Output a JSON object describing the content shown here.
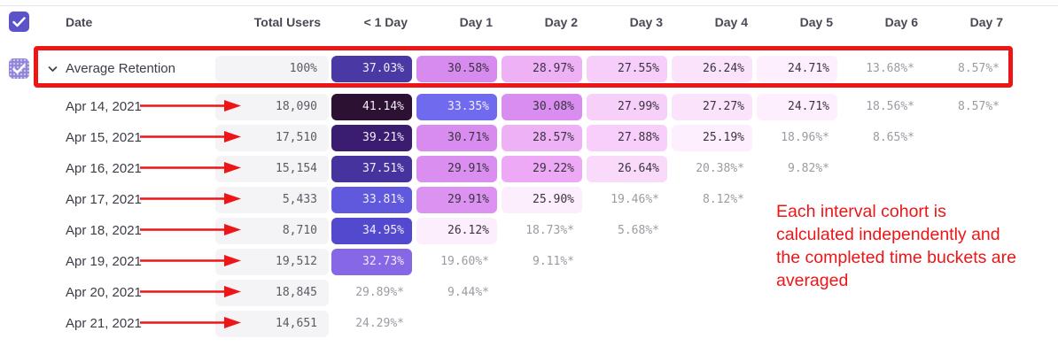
{
  "table": {
    "select_all_checked": true,
    "columns": [
      "Date",
      "Total Users",
      "< 1 Day",
      "Day 1",
      "Day 2",
      "Day 3",
      "Day 4",
      "Day 5",
      "Day 6",
      "Day 7"
    ],
    "rows": [
      {
        "label": "Average Retention",
        "expandable": true,
        "checked": true,
        "total": "100%",
        "cells": [
          {
            "value": "37.03%",
            "bg": "#4a38a4",
            "fg": "#f2edf9"
          },
          {
            "value": "30.58%",
            "bg": "#d88bef",
            "fg": "#3a3440"
          },
          {
            "value": "28.97%",
            "bg": "#eeb1f6",
            "fg": "#3a3440"
          },
          {
            "value": "27.55%",
            "bg": "#f7cdf9",
            "fg": "#3a3440"
          },
          {
            "value": "26.24%",
            "bg": "#fbe3fc",
            "fg": "#3a3440"
          },
          {
            "value": "24.71%",
            "bg": "#fdeffd",
            "fg": "#3a3440"
          },
          {
            "value": "13.68%*",
            "bg": "",
            "fg": "#9c9aa2"
          },
          {
            "value": "8.57%*",
            "bg": "",
            "fg": "#9c9aa2"
          }
        ]
      },
      {
        "label": "Apr 14, 2021",
        "expandable": false,
        "checked": false,
        "total": "18,090",
        "cells": [
          {
            "value": "41.14%",
            "bg": "#2c1132",
            "fg": "#f2edf9"
          },
          {
            "value": "33.35%",
            "bg": "#6f6aee",
            "fg": "#f2edf9"
          },
          {
            "value": "30.08%",
            "bg": "#d98df0",
            "fg": "#3a3440"
          },
          {
            "value": "27.99%",
            "bg": "#f7d0fa",
            "fg": "#3a3440"
          },
          {
            "value": "27.27%",
            "bg": "#fbe3fc",
            "fg": "#3a3440"
          },
          {
            "value": "24.71%",
            "bg": "#fdeffd",
            "fg": "#3a3440"
          },
          {
            "value": "18.56%*",
            "bg": "",
            "fg": "#9c9aa2"
          },
          {
            "value": "8.57%*",
            "bg": "",
            "fg": "#9c9aa2"
          }
        ]
      },
      {
        "label": "Apr 15, 2021",
        "expandable": false,
        "checked": false,
        "total": "17,510",
        "cells": [
          {
            "value": "39.21%",
            "bg": "#3a1d71",
            "fg": "#f2edf9"
          },
          {
            "value": "30.71%",
            "bg": "#d98cf0",
            "fg": "#3a3440"
          },
          {
            "value": "28.57%",
            "bg": "#eeb1f6",
            "fg": "#3a3440"
          },
          {
            "value": "27.88%",
            "bg": "#f7cffa",
            "fg": "#3a3440"
          },
          {
            "value": "25.19%",
            "bg": "#fdeffd",
            "fg": "#3a3440"
          },
          {
            "value": "18.96%*",
            "bg": "",
            "fg": "#9c9aa2"
          },
          {
            "value": "8.65%*",
            "bg": "",
            "fg": "#9c9aa2"
          }
        ]
      },
      {
        "label": "Apr 16, 2021",
        "expandable": false,
        "checked": false,
        "total": "15,154",
        "cells": [
          {
            "value": "37.51%",
            "bg": "#47339e",
            "fg": "#f2edf9"
          },
          {
            "value": "29.91%",
            "bg": "#da8ef0",
            "fg": "#3a3440"
          },
          {
            "value": "29.22%",
            "bg": "#eda9f5",
            "fg": "#3a3440"
          },
          {
            "value": "26.64%",
            "bg": "#f9dafb",
            "fg": "#3a3440"
          },
          {
            "value": "20.38%*",
            "bg": "",
            "fg": "#9c9aa2"
          },
          {
            "value": "9.82%*",
            "bg": "",
            "fg": "#9c9aa2"
          }
        ]
      },
      {
        "label": "Apr 17, 2021",
        "expandable": false,
        "checked": false,
        "total": "5,433",
        "cells": [
          {
            "value": "33.81%",
            "bg": "#6058dd",
            "fg": "#f2edf9"
          },
          {
            "value": "29.91%",
            "bg": "#dc92f1",
            "fg": "#3a3440"
          },
          {
            "value": "25.90%",
            "bg": "#fdeefd",
            "fg": "#3a3440"
          },
          {
            "value": "19.46%*",
            "bg": "",
            "fg": "#9c9aa2"
          },
          {
            "value": "8.12%*",
            "bg": "",
            "fg": "#9c9aa2"
          }
        ]
      },
      {
        "label": "Apr 18, 2021",
        "expandable": false,
        "checked": false,
        "total": "8,710",
        "cells": [
          {
            "value": "34.95%",
            "bg": "#5349cf",
            "fg": "#f2edf9"
          },
          {
            "value": "26.12%",
            "bg": "#fdeefd",
            "fg": "#3a3440"
          },
          {
            "value": "18.73%*",
            "bg": "",
            "fg": "#9c9aa2"
          },
          {
            "value": "5.68%*",
            "bg": "",
            "fg": "#9c9aa2"
          }
        ]
      },
      {
        "label": "Apr 19, 2021",
        "expandable": false,
        "checked": false,
        "total": "19,512",
        "cells": [
          {
            "value": "32.73%",
            "bg": "#8667e6",
            "fg": "#f2edf9"
          },
          {
            "value": "19.60%*",
            "bg": "",
            "fg": "#9c9aa2"
          },
          {
            "value": "9.11%*",
            "bg": "",
            "fg": "#9c9aa2"
          }
        ]
      },
      {
        "label": "Apr 20, 2021",
        "expandable": false,
        "checked": false,
        "total": "18,845",
        "cells": [
          {
            "value": "29.89%*",
            "bg": "",
            "fg": "#9c9aa2"
          },
          {
            "value": "9.44%*",
            "bg": "",
            "fg": "#9c9aa2"
          }
        ]
      },
      {
        "label": "Apr 21, 2021",
        "expandable": false,
        "checked": false,
        "total": "14,651",
        "cells": [
          {
            "value": "24.29%*",
            "bg": "",
            "fg": "#9c9aa2"
          }
        ]
      }
    ]
  },
  "annotation": {
    "color": "#ee1517",
    "highlighted_row": "Average Retention",
    "arrows_point_to": "Total Users",
    "note_lines": [
      "Each interval cohort is",
      "calculated independently and",
      "the completed time buckets are",
      "averaged"
    ]
  },
  "colors": {
    "accent_purple": "#5a54c8",
    "cell_gray_bg": "#f4f3f5",
    "muted_text": "#9c9aa2"
  }
}
